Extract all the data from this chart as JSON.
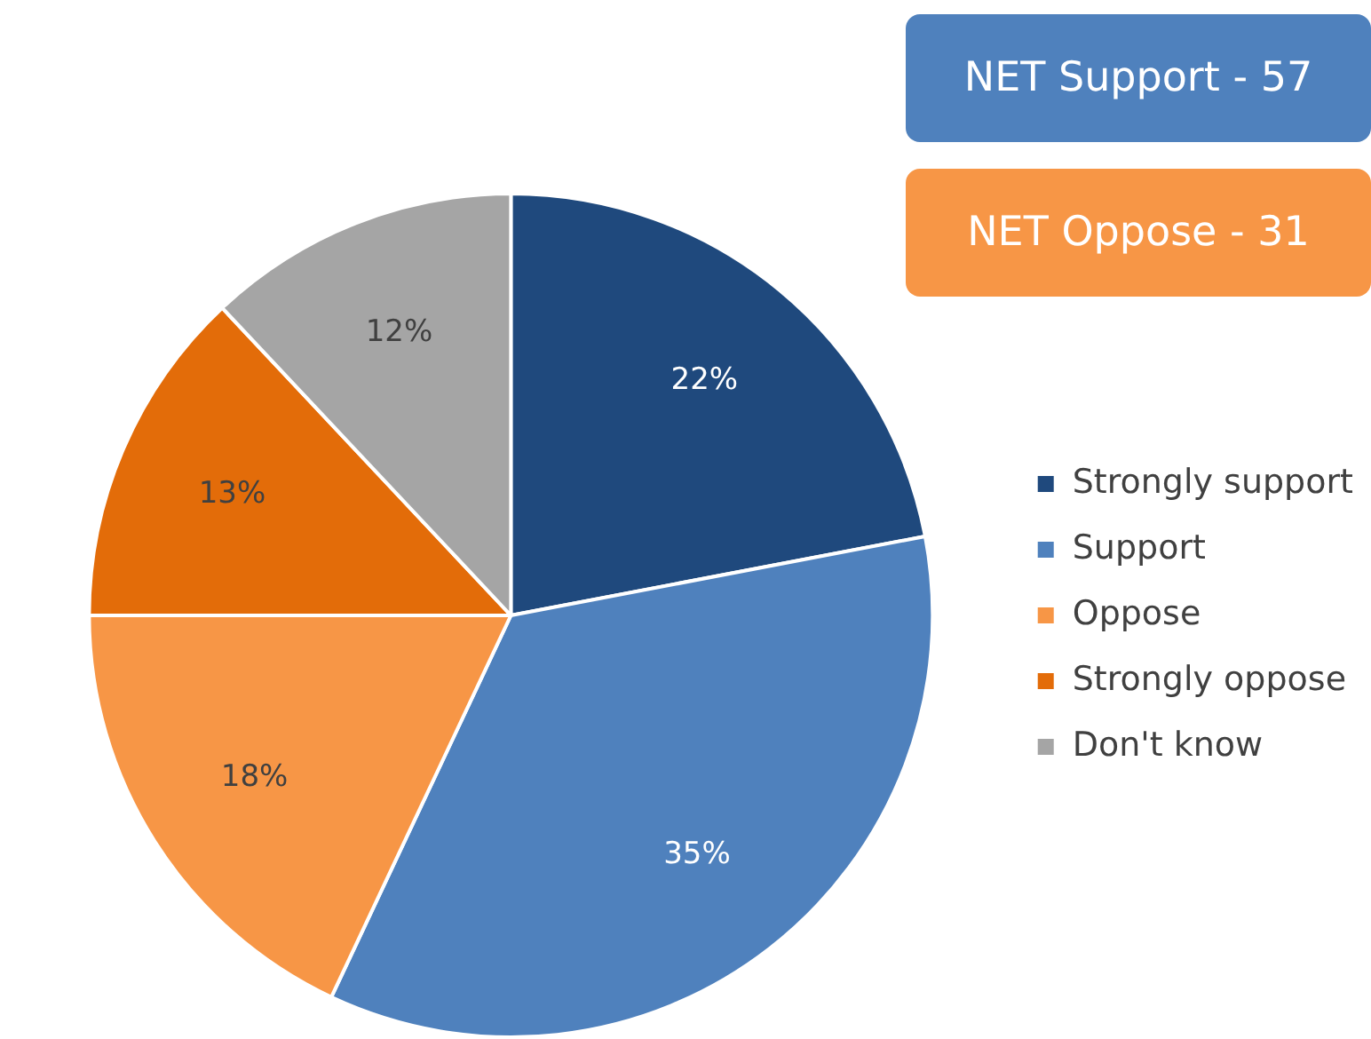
{
  "chart_data": {
    "type": "pie",
    "categories": [
      "Strongly support",
      "Support",
      "Oppose",
      "Strongly oppose",
      "Don't know"
    ],
    "values": [
      22,
      35,
      18,
      13,
      12
    ],
    "colors": [
      "#1f497d",
      "#4f81bd",
      "#f79646",
      "#e36c09",
      "#a5a5a5"
    ],
    "value_labels": [
      "22%",
      "35%",
      "18%",
      "13%",
      "12%"
    ],
    "legend": "right",
    "annotations": [
      "NET Support - 57",
      "NET Oppose - 31"
    ]
  }
}
